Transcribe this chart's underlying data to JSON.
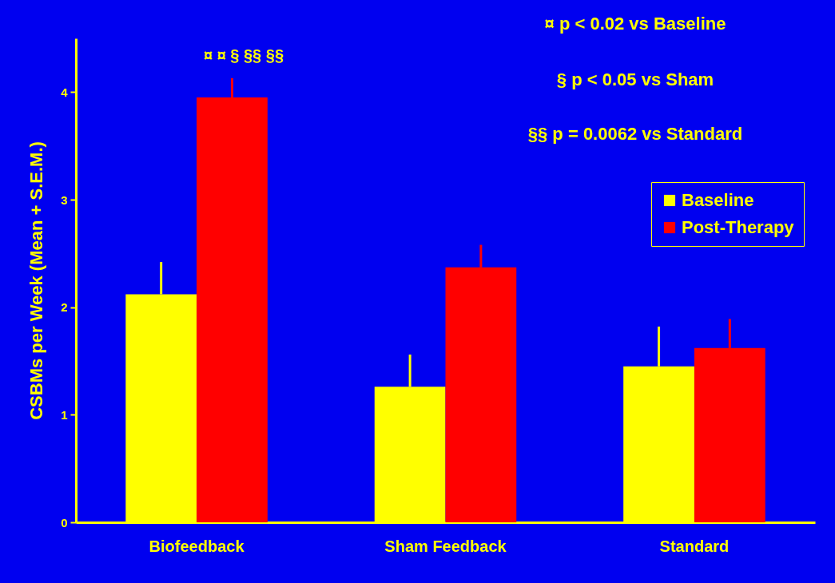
{
  "chart_data": {
    "type": "bar",
    "ylabel": "CSBMs per Week  (Mean + S.E.M.)",
    "categories": [
      "Biofeedback",
      "Sham Feedback",
      "Standard"
    ],
    "series": [
      {
        "name": "Baseline",
        "color": "#ffff00",
        "values": [
          2.12,
          1.26,
          1.45
        ],
        "errors": [
          [
            2.12,
            2.42
          ],
          [
            1.26,
            1.56
          ],
          [
            1.45,
            1.82
          ]
        ]
      },
      {
        "name": "Post-Therapy",
        "color": "#ff0000",
        "values": [
          3.95,
          2.37,
          1.62
        ],
        "errors": [
          [
            3.95,
            4.13
          ],
          [
            2.37,
            2.58
          ],
          [
            1.62,
            1.89
          ]
        ]
      }
    ],
    "ylim": [
      0,
      4.5
    ],
    "yticks": [
      0,
      1,
      2,
      3,
      4
    ],
    "grid": false,
    "legend": "right",
    "annotations": [
      "¤ ¤ § §§ §§",
      "¤ p < 0.02 vs Baseline",
      "§ p < 0.05 vs Sham",
      "§§ p = 0.0062 vs Standard"
    ]
  }
}
